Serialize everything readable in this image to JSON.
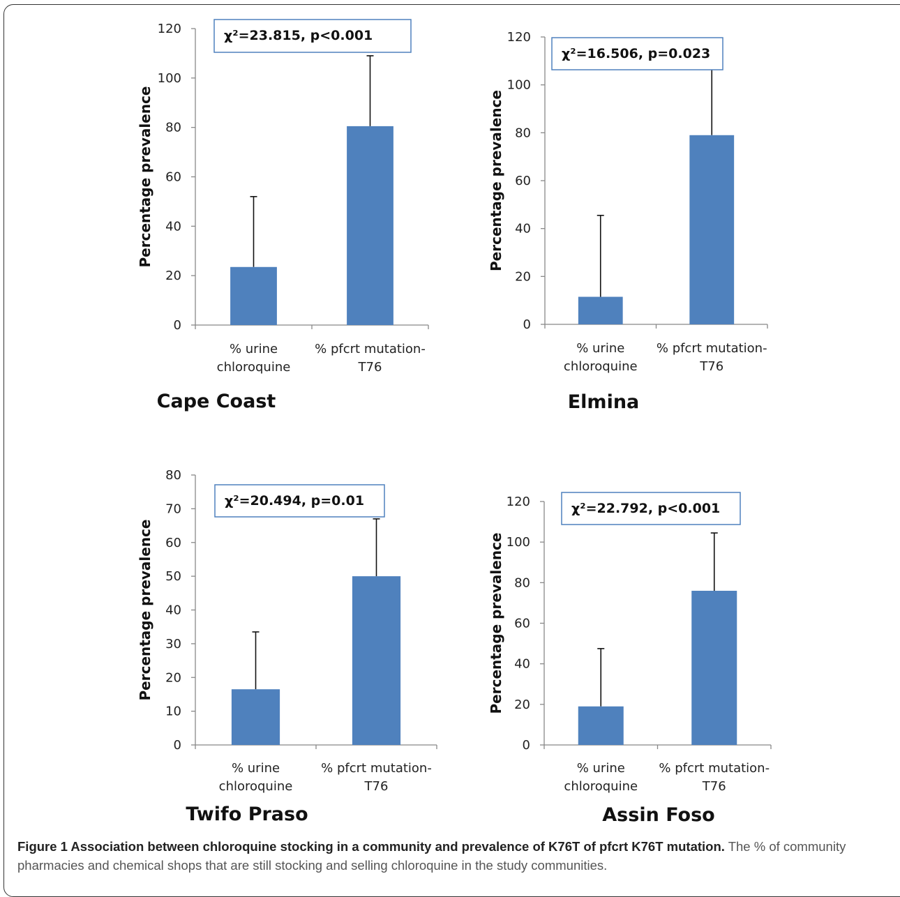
{
  "chart_data": [
    {
      "type": "bar",
      "title": "Cape Coast",
      "ylabel": "Percentage prevalence",
      "categories": [
        [
          "% urine",
          "chloroquine"
        ],
        [
          "% pfcrt mutation-",
          "T76"
        ]
      ],
      "values": [
        23.5,
        80.5
      ],
      "error_bars": [
        28.5,
        28.5
      ],
      "ylim": [
        0,
        120
      ],
      "yticks": [
        0,
        20,
        40,
        60,
        80,
        100,
        120
      ],
      "annotation": "χ²=23.815, p<0.001",
      "bar_color": "#4f81bd"
    },
    {
      "type": "bar",
      "title": "Elmina",
      "ylabel": "Percentage prevalence",
      "categories": [
        [
          "% urine",
          "chloroquine"
        ],
        [
          "% pfcrt mutation-",
          "T76"
        ]
      ],
      "values": [
        11.5,
        79
      ],
      "error_bars": [
        34,
        34
      ],
      "ylim": [
        0,
        120
      ],
      "yticks": [
        0,
        20,
        40,
        60,
        80,
        100,
        120
      ],
      "annotation": "χ²=16.506, p=0.023",
      "bar_color": "#4f81bd"
    },
    {
      "type": "bar",
      "title": "Twifo Praso",
      "ylabel": "Percentage prevalence",
      "categories": [
        [
          "% urine",
          "chloroquine"
        ],
        [
          "% pfcrt mutation-",
          "T76"
        ]
      ],
      "values": [
        16.5,
        50
      ],
      "error_bars": [
        17,
        17
      ],
      "ylim": [
        0,
        80
      ],
      "yticks": [
        0,
        10,
        20,
        30,
        40,
        50,
        60,
        70,
        80
      ],
      "annotation": "χ²=20.494, p=0.01",
      "bar_color": "#4f81bd"
    },
    {
      "type": "bar",
      "title": "Assin  Foso",
      "ylabel": "Percentage prevalence",
      "categories": [
        [
          "% urine",
          "chloroquine"
        ],
        [
          "% pfcrt mutation-",
          "T76"
        ]
      ],
      "values": [
        19,
        76
      ],
      "error_bars": [
        28.5,
        28.5
      ],
      "ylim": [
        0,
        120
      ],
      "yticks": [
        0,
        20,
        40,
        60,
        80,
        100,
        120
      ],
      "annotation": "χ²=22.792, p<0.001",
      "bar_color": "#4f81bd"
    }
  ],
  "caption": {
    "lead": "Figure 1 Association between chloroquine stocking in a community and prevalence of K76T of pfcrt K76T mutation.",
    "body": "The % of community pharmacies and chemical shops that are still stocking and selling chloroquine in the study communities."
  }
}
